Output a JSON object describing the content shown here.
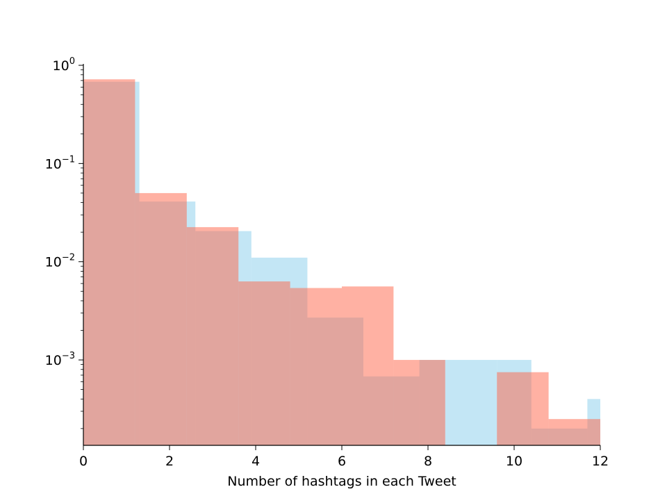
{
  "chart_data": {
    "type": "bar",
    "title": "",
    "xlabel": "Number of hashtags in each Tweet",
    "ylabel": "",
    "xlim": [
      0,
      12
    ],
    "ylim": [
      0.000135,
      1.0
    ],
    "yscale": "log",
    "grid": false,
    "x_ticks": [
      0,
      2,
      4,
      6,
      8,
      10,
      12
    ],
    "y_ticks": [
      {
        "value": 1,
        "base": "10",
        "exp": "0"
      },
      {
        "value": 0.1,
        "base": "10",
        "exp": "−1"
      },
      {
        "value": 0.01,
        "base": "10",
        "exp": "−2"
      },
      {
        "value": 0.001,
        "base": "10",
        "exp": "−3"
      }
    ],
    "series": [
      {
        "color": "#87CEEB",
        "opacity": 0.5,
        "bins": [
          {
            "x0": 0.0,
            "x1": 1.3,
            "value": 0.68
          },
          {
            "x0": 1.3,
            "x1": 2.6,
            "value": 0.041
          },
          {
            "x0": 2.6,
            "x1": 3.9,
            "value": 0.0205
          },
          {
            "x0": 3.9,
            "x1": 5.2,
            "value": 0.011
          },
          {
            "x0": 5.2,
            "x1": 6.5,
            "value": 0.0027
          },
          {
            "x0": 6.5,
            "x1": 7.8,
            "value": 0.00068
          },
          {
            "x0": 7.8,
            "x1": 8.4,
            "value": 0.001
          },
          {
            "x0": 8.4,
            "x1": 9.6,
            "value": 0.001
          },
          {
            "x0": 9.6,
            "x1": 10.4,
            "value": 0.001
          },
          {
            "x0": 10.4,
            "x1": 11.7,
            "value": 0.0002
          },
          {
            "x0": 11.7,
            "x1": 12.0,
            "value": 0.0004
          }
        ]
      },
      {
        "color": "#FF6347",
        "opacity": 0.5,
        "bins": [
          {
            "x0": 0.0,
            "x1": 1.2,
            "value": 0.72
          },
          {
            "x0": 1.2,
            "x1": 2.4,
            "value": 0.05
          },
          {
            "x0": 2.4,
            "x1": 3.6,
            "value": 0.0225
          },
          {
            "x0": 3.6,
            "x1": 4.8,
            "value": 0.0063
          },
          {
            "x0": 4.8,
            "x1": 6.0,
            "value": 0.0054
          },
          {
            "x0": 6.0,
            "x1": 7.2,
            "value": 0.0056
          },
          {
            "x0": 7.2,
            "x1": 8.4,
            "value": 0.001
          },
          {
            "x0": 8.4,
            "x1": 9.6,
            "value": 0
          },
          {
            "x0": 9.6,
            "x1": 10.8,
            "value": 0.00075
          },
          {
            "x0": 10.8,
            "x1": 12.0,
            "value": 0.00025
          }
        ]
      }
    ]
  }
}
